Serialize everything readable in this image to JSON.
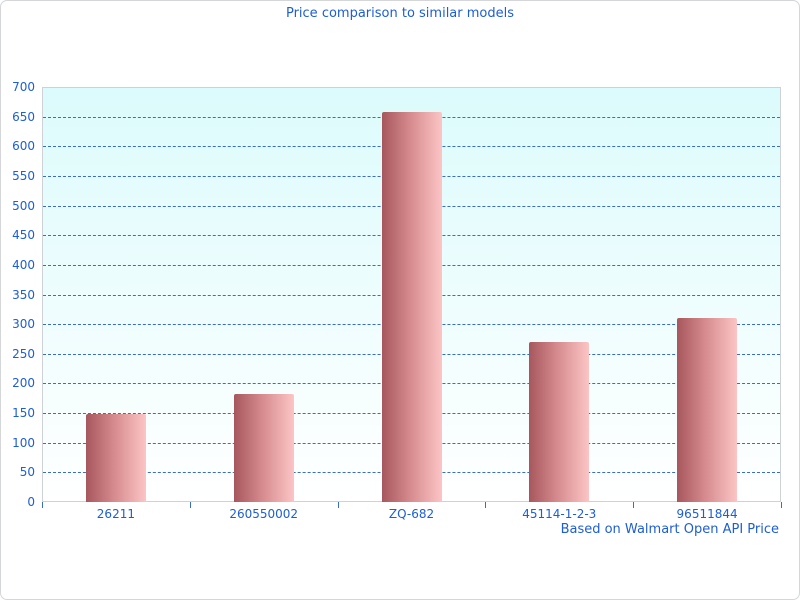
{
  "title": "Price comparison to similar models",
  "footer": "Based on Walmart Open API Price",
  "colors": {
    "text_blue": "#1e5ed3",
    "gridline_blue": "#3a6cc8",
    "plot_border": "#ccd2d6",
    "outer_border": "#d4d6da",
    "plot_bg_top": "#dcfbfc",
    "plot_bg_bottom": "#ffffff",
    "bar_dark": "#a6575d",
    "bar_light": "#fcc5c5"
  },
  "chart_data": {
    "type": "bar",
    "title": "Price comparison to similar models",
    "categories": [
      "26211",
      "260550002",
      "ZQ-682",
      "45114-1-2-3",
      "96511844"
    ],
    "values": [
      148,
      182,
      657,
      270,
      311
    ],
    "xlabel": "",
    "ylabel": "",
    "ylim": [
      0,
      700
    ],
    "ytick_step": 50,
    "grid": "horizontal-dashed-blue",
    "legend": "none",
    "annotation": "Based on Walmart Open API Price",
    "bar_style": "horizontal gradient dark-red to light-pink"
  }
}
